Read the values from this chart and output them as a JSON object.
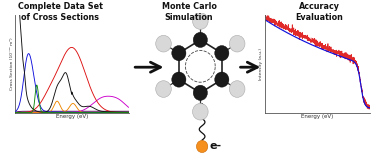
{
  "title_left": "Complete Data Set\nof Cross Sections",
  "title_mid": "Monte Carlo\nSimulation",
  "title_right": "Accuracy\nEvaluation",
  "arrow_color": "#111111",
  "xlabel_left": "Energy (eV)",
  "ylabel_left": "Cross Section (10⁻²⁰ m²)",
  "xlabel_right": "Energy (eV)",
  "ylabel_right": "Intensity (a.u.)",
  "bg_color": "#ffffff",
  "line_colors": {
    "black": "#111111",
    "red": "#dd1111",
    "blue": "#1111dd",
    "green": "#118811",
    "orange": "#ee8800",
    "magenta": "#cc00cc",
    "purple": "#550055"
  },
  "fig_width": 3.78,
  "fig_height": 1.68,
  "dpi": 100
}
